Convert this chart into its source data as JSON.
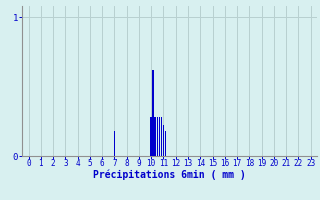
{
  "title": "",
  "xlabel": "Précipitations 6min ( mm )",
  "ylabel": "",
  "background_color": "#d8f0f0",
  "bar_color": "#0000cc",
  "grid_color": "#b8d0d0",
  "axis_color": "#909090",
  "text_color": "#0000cc",
  "xlim": [
    -0.5,
    23.5
  ],
  "ylim": [
    0,
    1.08
  ],
  "yticks": [
    0,
    1
  ],
  "xticks": [
    0,
    1,
    2,
    3,
    4,
    5,
    6,
    7,
    8,
    9,
    10,
    11,
    12,
    13,
    14,
    15,
    16,
    17,
    18,
    19,
    20,
    21,
    22,
    23
  ],
  "bar_positions": [
    7,
    10,
    10.167,
    10.333,
    10.5,
    10.667,
    10.833,
    11,
    11.167
  ],
  "bar_heights": [
    0.18,
    0.28,
    0.62,
    0.28,
    0.28,
    0.28,
    0.28,
    0.22,
    0.18
  ],
  "bar_width": 0.13
}
